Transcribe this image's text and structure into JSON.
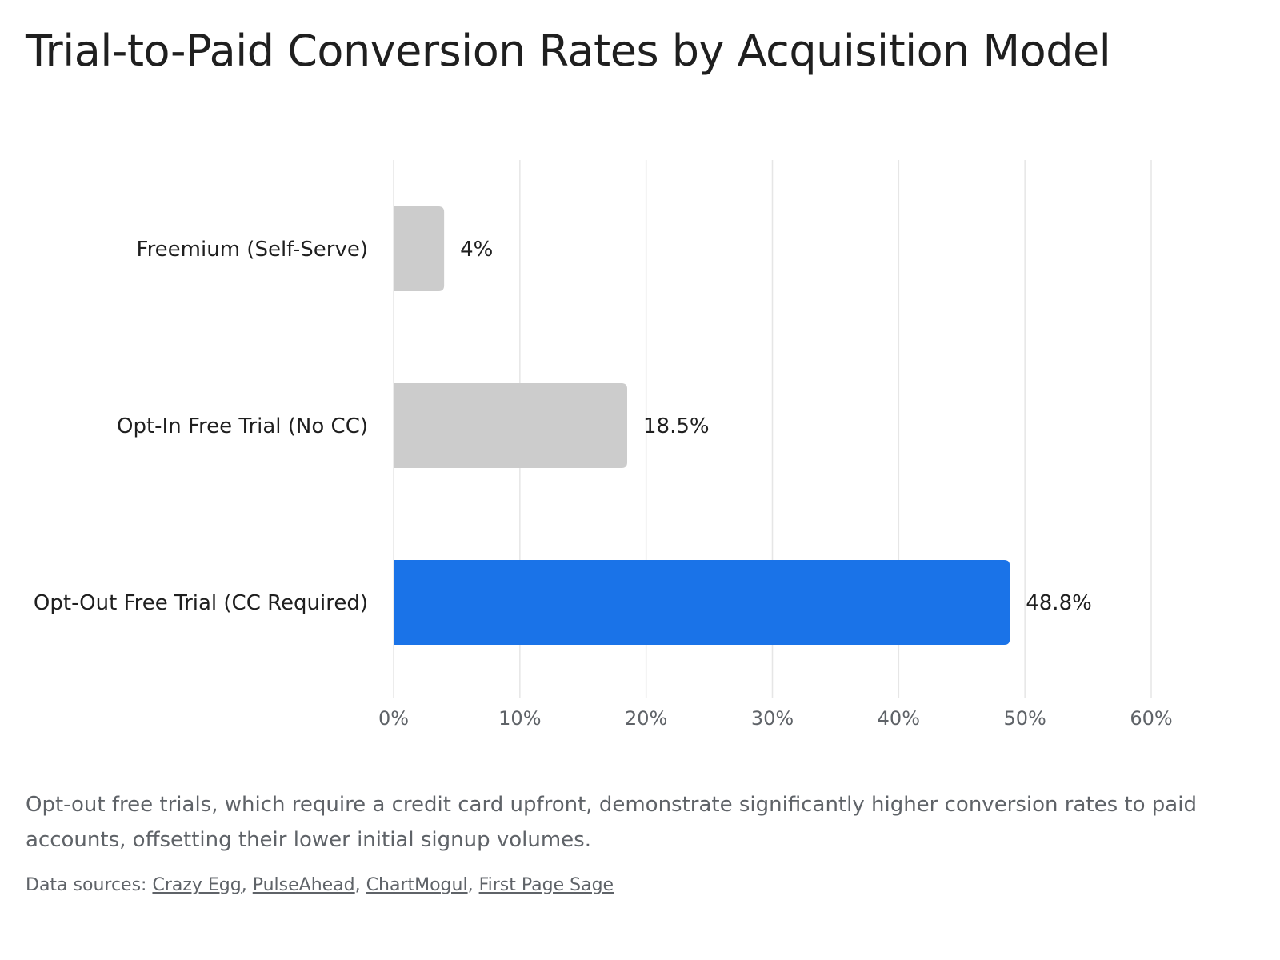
{
  "chart_data": {
    "type": "bar",
    "orientation": "horizontal",
    "title": "Trial-to-Paid Conversion Rates by Acquisition Model",
    "categories": [
      "Freemium (Self-Serve)",
      "Opt-In Free Trial (No CC)",
      "Opt-Out Free Trial (CC Required)"
    ],
    "values": [
      4,
      18.5,
      48.8
    ],
    "value_labels": [
      "4%",
      "18.5%",
      "48.8%"
    ],
    "bar_colors": [
      "#cccccc",
      "#cccccc",
      "#1a73e8"
    ],
    "xlim": [
      0,
      60
    ],
    "x_ticks": [
      0,
      10,
      20,
      30,
      40,
      50,
      60
    ],
    "x_tick_labels": [
      "0%",
      "10%",
      "20%",
      "30%",
      "40%",
      "50%",
      "60%"
    ],
    "xlabel": "",
    "ylabel": "",
    "grid": "vertical",
    "legend": "none"
  },
  "caption": "Opt-out free trials, which require a credit card upfront, demonstrate significantly higher conversion rates to paid accounts, offsetting their lower initial signup volumes.",
  "sources": {
    "prefix": "Data sources: ",
    "links": [
      "Crazy Egg",
      "PulseAhead",
      "ChartMogul",
      "First Page Sage"
    ],
    "separator": ", "
  }
}
